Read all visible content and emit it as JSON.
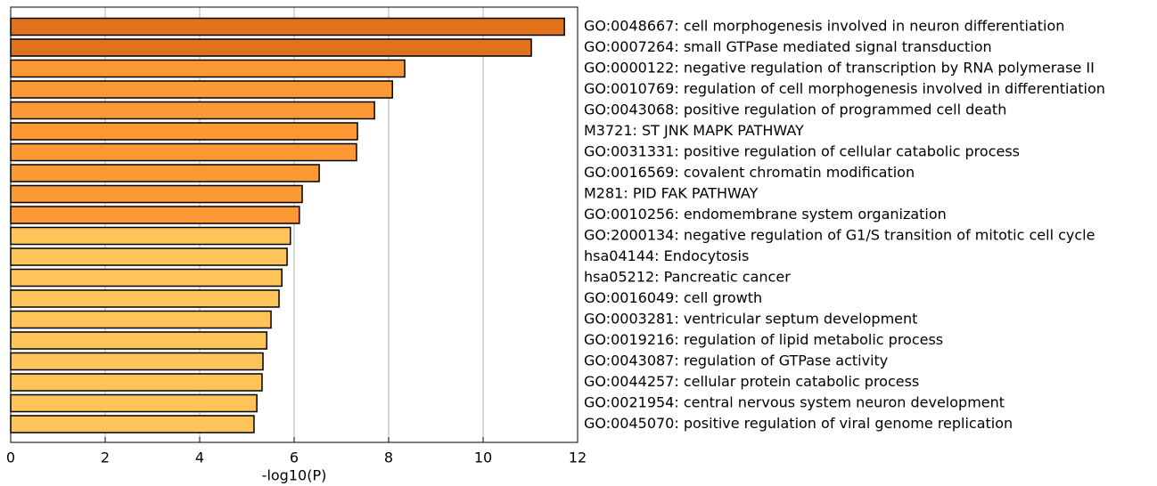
{
  "chart_data": {
    "type": "hbar",
    "x_label": "-log10(P)",
    "categories": [
      "GO:0048667: cell morphogenesis involved in neuron differentiation",
      "GO:0007264: small GTPase mediated signal transduction",
      "GO:0000122: negative regulation of transcription by RNA polymerase II",
      "GO:0010769: regulation of cell morphogenesis involved in differentiation",
      "GO:0043068: positive regulation of programmed cell death",
      "M3721: ST JNK MAPK PATHWAY",
      "GO:0031331: positive regulation of cellular catabolic process",
      "GO:0016569: covalent chromatin modification",
      "M281: PID FAK PATHWAY",
      "GO:0010256: endomembrane system organization",
      "GO:2000134: negative regulation of G1/S transition of mitotic cell cycle",
      "hsa04144: Endocytosis",
      "hsa05212: Pancreatic cancer",
      "GO:0016049: cell growth",
      "GO:0003281: ventricular septum development",
      "GO:0019216: regulation of lipid metabolic process",
      "GO:0043087: regulation of GTPase activity",
      "GO:0044257: cellular protein catabolic process",
      "GO:0021954: central nervous system neuron development",
      "GO:0045070: positive regulation of viral genome replication"
    ],
    "values": [
      11.72,
      11.02,
      8.34,
      8.08,
      7.7,
      7.34,
      7.32,
      6.53,
      6.17,
      6.11,
      5.92,
      5.85,
      5.74,
      5.68,
      5.51,
      5.42,
      5.34,
      5.32,
      5.21,
      5.15
    ],
    "colors": [
      "#e0711d",
      "#e0711d",
      "#fc9935",
      "#fc9935",
      "#fc9935",
      "#fc9935",
      "#fc9935",
      "#fc9935",
      "#fc9935",
      "#fc9935",
      "#fec45a",
      "#fec45a",
      "#fec45a",
      "#fec45a",
      "#fec45a",
      "#fec45a",
      "#fec45a",
      "#fec45a",
      "#fec45a",
      "#fec45a"
    ],
    "xlim": [
      0,
      12
    ],
    "xticks": [
      0,
      2,
      4,
      6,
      8,
      10,
      12
    ],
    "grid": true
  }
}
